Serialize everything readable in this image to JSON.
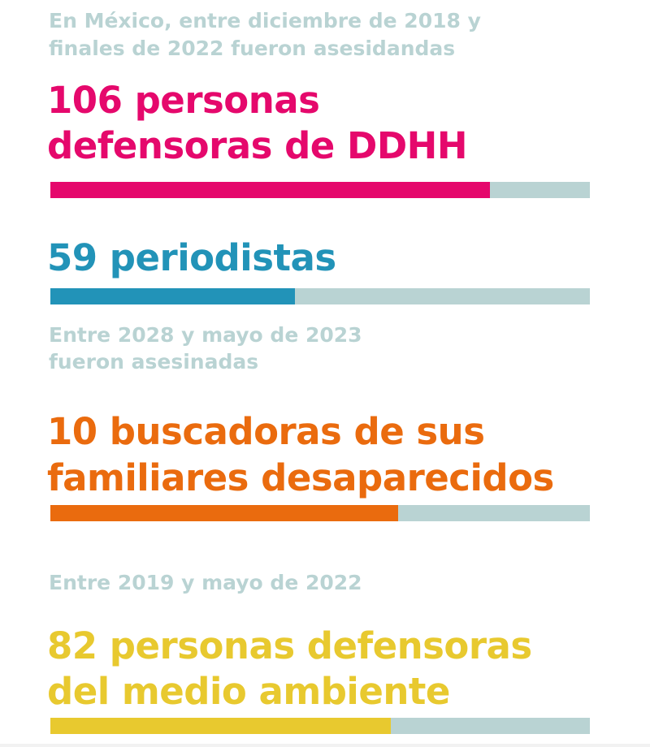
{
  "captions": {
    "intro_line1": "En México, entre diciembre de 2018 y",
    "intro_line2": "finales de 2022 fueron asesidandas",
    "mid_line1": "Entre 2028 y mayo de 2023",
    "mid_line2": "fueron asesinadas",
    "env_line1": "Entre 2019 y mayo de 2022"
  },
  "chart_data": {
    "type": "bar",
    "orientation": "horizontal",
    "track_color": "#b9d3d3",
    "xlim": [
      0,
      130
    ],
    "grid": false,
    "series": [
      {
        "line1": "106 personas",
        "line2": "defensoras de DDHH",
        "value": 106,
        "color": "#e5086c"
      },
      {
        "line1": "59 periodistas",
        "line2": "",
        "value": 59,
        "color": "#2293b8"
      },
      {
        "line1": "10 buscadoras de sus",
        "line2": "familiares desaparecidos",
        "value": 10,
        "fill_fraction": 0.645,
        "color": "#ea6b0e"
      },
      {
        "line1": "82 personas defensoras",
        "line2": "del medio ambiente",
        "value": 82,
        "color": "#e8c92f"
      }
    ]
  }
}
